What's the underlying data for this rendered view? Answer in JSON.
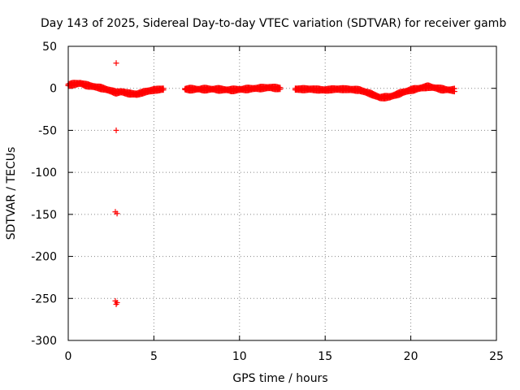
{
  "chart_data": {
    "type": "scatter",
    "title": "Day 143 of 2025, Sidereal Day-to-day VTEC variation (SDTVAR) for receiver gamb",
    "xlabel": "GPS time / hours",
    "ylabel": "SDTVAR / TECUs",
    "xlim": [
      0,
      25
    ],
    "ylim": [
      -300,
      50
    ],
    "xticks": [
      0,
      5,
      10,
      15,
      20,
      25
    ],
    "yticks": [
      50,
      0,
      -50,
      -100,
      -150,
      -200,
      -250,
      -300
    ],
    "grid": true,
    "marker": "+",
    "color": "#ff0000",
    "series": [
      {
        "name": "SDTVAR",
        "curve": [
          [
            0.0,
            4
          ],
          [
            0.3,
            5
          ],
          [
            0.7,
            6
          ],
          [
            1.0,
            4
          ],
          [
            1.5,
            2
          ],
          [
            2.0,
            0
          ],
          [
            2.5,
            -3
          ],
          [
            2.8,
            -5
          ],
          [
            3.1,
            -4
          ],
          [
            3.5,
            -6
          ],
          [
            4.0,
            -7
          ],
          [
            4.5,
            -4
          ],
          [
            5.0,
            -2
          ],
          [
            5.5,
            -1
          ],
          [
            6.9,
            -1
          ],
          [
            7.5,
            -1
          ],
          [
            8.5,
            -1
          ],
          [
            9.5,
            -2
          ],
          [
            10.3,
            -1
          ],
          [
            11.0,
            0
          ],
          [
            11.8,
            1
          ],
          [
            12.3,
            0
          ],
          [
            13.3,
            -1
          ],
          [
            14.2,
            -1
          ],
          [
            15.0,
            -2
          ],
          [
            15.5,
            -1
          ],
          [
            16.2,
            -1
          ],
          [
            17.0,
            -2
          ],
          [
            17.6,
            -6
          ],
          [
            18.2,
            -11
          ],
          [
            18.8,
            -10
          ],
          [
            19.5,
            -5
          ],
          [
            20.0,
            -2
          ],
          [
            20.5,
            0
          ],
          [
            21.0,
            2
          ],
          [
            21.3,
            1
          ],
          [
            21.8,
            -1
          ],
          [
            22.3,
            -2
          ],
          [
            22.6,
            -2
          ]
        ],
        "gaps": [
          [
            5.6,
            6.8
          ],
          [
            12.4,
            13.2
          ]
        ],
        "outliers": [
          [
            2.8,
            30
          ],
          [
            2.8,
            -50
          ],
          [
            2.75,
            -147
          ],
          [
            2.85,
            -149
          ],
          [
            2.75,
            -253
          ],
          [
            2.85,
            -255
          ],
          [
            2.8,
            -257
          ]
        ]
      }
    ]
  }
}
